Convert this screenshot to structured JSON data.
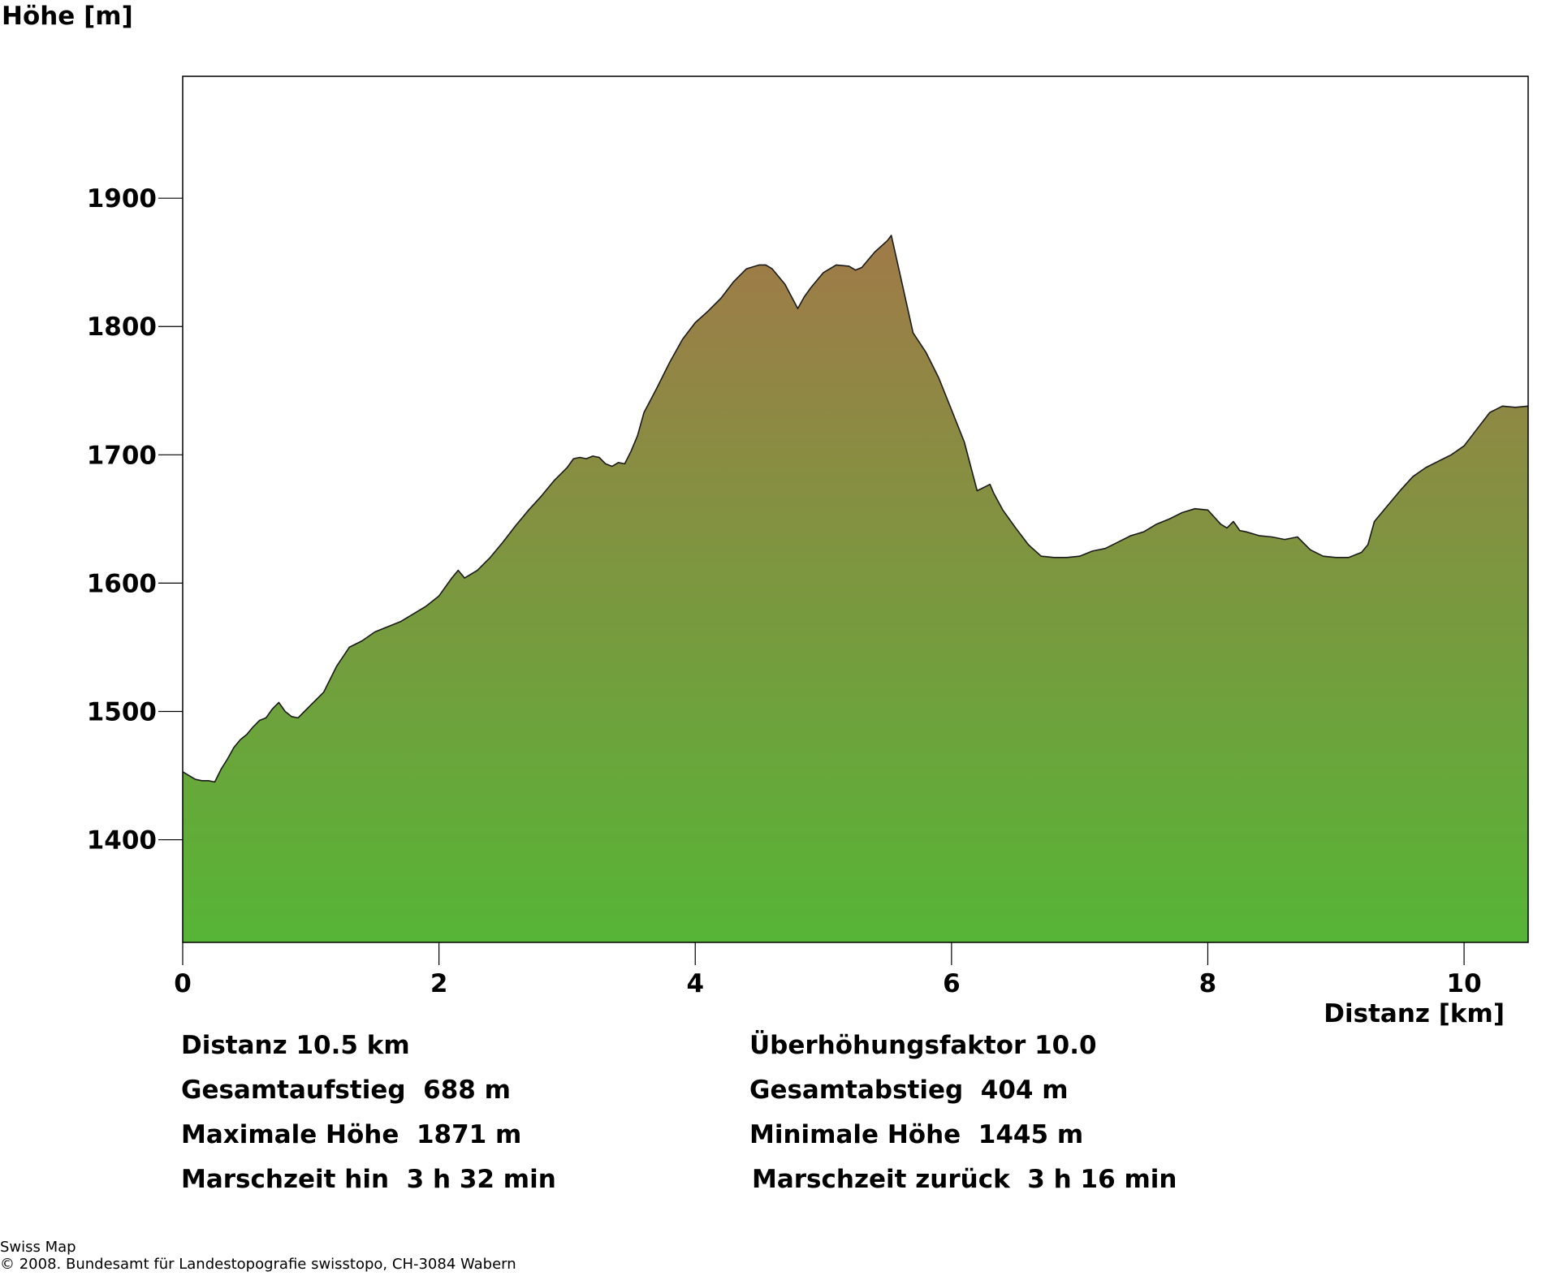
{
  "chart_data": {
    "type": "area",
    "title": "",
    "ylabel": "Höhe [m]",
    "xlabel": "Distanz [km]",
    "xlim": [
      0,
      10.5
    ],
    "ylim": [
      1320,
      1995
    ],
    "x_ticks": [
      "0",
      "2",
      "4",
      "6",
      "8",
      "10"
    ],
    "y_ticks": [
      "1400",
      "1500",
      "1600",
      "1700",
      "1800",
      "1900"
    ],
    "grid": false,
    "fill_gradient": {
      "top": "#A07A48",
      "bottom": "#56B536"
    },
    "series": [
      {
        "x": [
          0,
          0.05,
          0.1,
          0.15,
          0.2,
          0.25,
          0.3,
          0.35,
          0.4,
          0.45,
          0.5,
          0.55,
          0.6,
          0.65,
          0.7,
          0.75,
          0.8,
          0.85,
          0.9,
          0.95,
          1.0,
          1.1,
          1.2,
          1.3,
          1.4,
          1.5,
          1.6,
          1.7,
          1.8,
          1.9,
          2.0,
          2.1,
          2.15,
          2.2,
          2.3,
          2.4,
          2.5,
          2.6,
          2.7,
          2.8,
          2.9,
          3.0,
          3.05,
          3.1,
          3.15,
          3.2,
          3.25,
          3.3,
          3.35,
          3.4,
          3.45,
          3.5,
          3.55,
          3.6,
          3.7,
          3.8,
          3.9,
          4.0,
          4.1,
          4.2,
          4.3,
          4.4,
          4.5,
          4.55,
          4.6,
          4.7,
          4.8,
          4.85,
          4.9,
          5.0,
          5.1,
          5.2,
          5.25,
          5.3,
          5.35,
          5.4,
          5.5,
          5.53,
          5.6,
          5.7,
          5.8,
          5.9,
          6.0,
          6.1,
          6.2,
          6.3,
          6.33,
          6.4,
          6.5,
          6.6,
          6.7,
          6.8,
          6.9,
          7.0,
          7.1,
          7.2,
          7.3,
          7.4,
          7.5,
          7.6,
          7.7,
          7.8,
          7.9,
          8.0,
          8.1,
          8.15,
          8.2,
          8.25,
          8.3,
          8.4,
          8.5,
          8.6,
          8.7,
          8.8,
          8.9,
          9.0,
          9.1,
          9.2,
          9.25,
          9.3,
          9.4,
          9.5,
          9.6,
          9.7,
          9.8,
          9.9,
          10.0,
          10.1,
          10.2,
          10.3,
          10.4,
          10.5
        ],
        "values": [
          1453,
          1450,
          1447,
          1446,
          1446,
          1445,
          1455,
          1463,
          1472,
          1478,
          1482,
          1488,
          1493,
          1495,
          1502,
          1507,
          1500,
          1496,
          1495,
          1500,
          1505,
          1515,
          1535,
          1550,
          1555,
          1562,
          1566,
          1570,
          1576,
          1582,
          1590,
          1604,
          1610,
          1604,
          1610,
          1620,
          1632,
          1645,
          1657,
          1668,
          1680,
          1690,
          1697,
          1698,
          1697,
          1699,
          1698,
          1693,
          1691,
          1694,
          1693,
          1703,
          1715,
          1733,
          1752,
          1772,
          1790,
          1803,
          1812,
          1822,
          1835,
          1845,
          1848,
          1848,
          1845,
          1833,
          1814,
          1823,
          1830,
          1842,
          1848,
          1847,
          1844,
          1846,
          1852,
          1858,
          1867,
          1871,
          1840,
          1795,
          1780,
          1760,
          1735,
          1710,
          1672,
          1677,
          1670,
          1657,
          1643,
          1630,
          1621,
          1620,
          1620,
          1621,
          1625,
          1627,
          1632,
          1637,
          1640,
          1646,
          1650,
          1655,
          1658,
          1657,
          1646,
          1643,
          1648,
          1641,
          1640,
          1637,
          1636,
          1634,
          1636,
          1626,
          1621,
          1620,
          1620,
          1624,
          1630,
          1648,
          1660,
          1672,
          1683,
          1690,
          1695,
          1700,
          1707,
          1720,
          1733,
          1738,
          1737,
          1738
        ]
      }
    ]
  },
  "stats": {
    "left": [
      "Distanz 10.5 km",
      "Gesamtaufstieg  688 m",
      "Maximale Höhe  1871 m",
      "Marschzeit hin  3 h 32 min"
    ],
    "right": [
      "Überhöhungsfaktor 10.0",
      "Gesamtabstieg  404 m",
      "Minimale Höhe  1445 m",
      "Marschzeit zurück  3 h 16 min"
    ]
  },
  "footer": {
    "source": "Swiss Map",
    "copyright": "© 2008. Bundesamt für Landestopografie swisstopo, CH-3084 Wabern"
  }
}
